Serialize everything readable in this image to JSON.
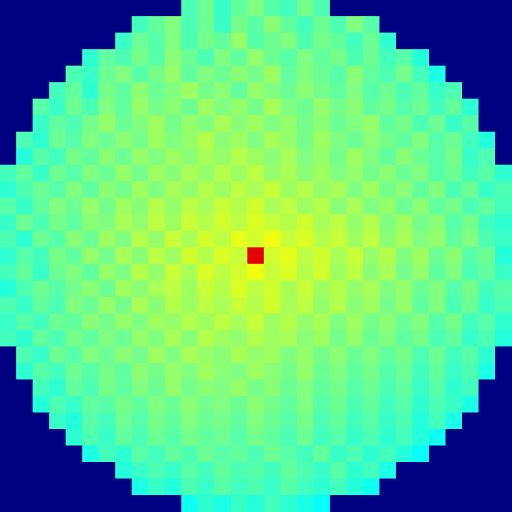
{
  "chart_data": {
    "type": "heatmap",
    "zlim": [
      0,
      1
    ],
    "tick_labels": false,
    "grid": false,
    "cells": [
      [
        0,
        0,
        0,
        0,
        0,
        0,
        0,
        0,
        0,
        0,
        0,
        0.45,
        0.48,
        0.43,
        0.47,
        0.5,
        0.46,
        0.44,
        0.49,
        0.45,
        0,
        0,
        0,
        0,
        0,
        0,
        0,
        0,
        0,
        0,
        0
      ],
      [
        0,
        0,
        0,
        0,
        0,
        0,
        0,
        0,
        0.44,
        0.47,
        0.5,
        0.45,
        0.48,
        0.43,
        0.49,
        0.46,
        0.51,
        0.47,
        0.44,
        0.48,
        0.45,
        0.5,
        0.46,
        0,
        0,
        0,
        0,
        0,
        0,
        0,
        0
      ],
      [
        0,
        0,
        0,
        0,
        0,
        0,
        0,
        0.43,
        0.48,
        0.46,
        0.5,
        0.45,
        0.49,
        0.47,
        0.52,
        0.46,
        0.48,
        0.5,
        0.45,
        0.49,
        0.47,
        0.44,
        0.48,
        0.42,
        0,
        0,
        0,
        0,
        0,
        0,
        0
      ],
      [
        0,
        0,
        0,
        0,
        0,
        0.42,
        0.47,
        0.45,
        0.49,
        0.46,
        0.51,
        0.48,
        0.45,
        0.5,
        0.47,
        0.52,
        0.48,
        0.46,
        0.5,
        0.47,
        0.49,
        0.45,
        0.48,
        0.44,
        0.46,
        0.41,
        0,
        0,
        0,
        0,
        0
      ],
      [
        0,
        0,
        0,
        0,
        0.45,
        0.43,
        0.48,
        0.5,
        0.46,
        0.49,
        0.52,
        0.47,
        0.5,
        0.48,
        0.51,
        0.49,
        0.53,
        0.47,
        0.5,
        0.48,
        0.46,
        0.51,
        0.47,
        0.45,
        0.49,
        0.44,
        0.4,
        0,
        0,
        0,
        0
      ],
      [
        0,
        0,
        0,
        0.44,
        0.47,
        0.42,
        0.49,
        0.47,
        0.51,
        0.48,
        0.5,
        0.53,
        0.49,
        0.51,
        0.47,
        0.52,
        0.5,
        0.48,
        0.51,
        0.49,
        0.47,
        0.5,
        0.46,
        0.48,
        0.45,
        0.47,
        0.43,
        0.45,
        0,
        0,
        0
      ],
      [
        0,
        0,
        0.46,
        0.43,
        0.48,
        0.45,
        0.5,
        0.47,
        0.52,
        0.49,
        0.51,
        0.48,
        0.53,
        0.5,
        0.52,
        0.49,
        0.54,
        0.5,
        0.48,
        0.52,
        0.49,
        0.51,
        0.47,
        0.49,
        0.46,
        0.48,
        0.44,
        0.47,
        0.42,
        0,
        0
      ],
      [
        0,
        0,
        0.43,
        0.47,
        0.45,
        0.49,
        0.52,
        0.48,
        0.5,
        0.53,
        0.49,
        0.52,
        0.5,
        0.54,
        0.51,
        0.53,
        0.5,
        0.52,
        0.49,
        0.51,
        0.48,
        0.5,
        0.52,
        0.47,
        0.49,
        0.45,
        0.48,
        0.43,
        0.46,
        0,
        0
      ],
      [
        0,
        0.45,
        0.42,
        0.48,
        0.46,
        0.5,
        0.48,
        0.51,
        0.49,
        0.53,
        0.5,
        0.52,
        0.55,
        0.51,
        0.53,
        0.5,
        0.54,
        0.52,
        0.49,
        0.53,
        0.5,
        0.48,
        0.51,
        0.49,
        0.47,
        0.5,
        0.46,
        0.48,
        0.44,
        0.41,
        0
      ],
      [
        0,
        0.41,
        0.46,
        0.44,
        0.49,
        0.47,
        0.51,
        0.48,
        0.52,
        0.5,
        0.53,
        0.51,
        0.54,
        0.52,
        0.55,
        0.53,
        0.51,
        0.54,
        0.5,
        0.52,
        0.49,
        0.53,
        0.5,
        0.47,
        0.51,
        0.48,
        0.46,
        0.49,
        0.43,
        0.45,
        0
      ],
      [
        0.44,
        0.47,
        0.43,
        0.48,
        0.46,
        0.5,
        0.48,
        0.52,
        0.49,
        0.53,
        0.51,
        0.54,
        0.52,
        0.55,
        0.53,
        0.56,
        0.52,
        0.54,
        0.51,
        0.53,
        0.5,
        0.52,
        0.49,
        0.51,
        0.48,
        0.5,
        0.46,
        0.48,
        0.44,
        0.46,
        0.42
      ],
      [
        0.42,
        0.45,
        0.48,
        0.46,
        0.5,
        0.47,
        0.51,
        0.49,
        0.53,
        0.5,
        0.54,
        0.52,
        0.55,
        0.53,
        0.56,
        0.54,
        0.57,
        0.53,
        0.55,
        0.52,
        0.54,
        0.5,
        0.53,
        0.49,
        0.51,
        0.47,
        0.5,
        0.45,
        0.48,
        0.43,
        0.45
      ],
      [
        0.46,
        0.43,
        0.47,
        0.5,
        0.48,
        0.52,
        0.49,
        0.53,
        0.51,
        0.55,
        0.52,
        0.56,
        0.54,
        0.57,
        0.55,
        0.58,
        0.54,
        0.56,
        0.53,
        0.55,
        0.51,
        0.54,
        0.5,
        0.52,
        0.48,
        0.51,
        0.47,
        0.49,
        0.45,
        0.47,
        0.44
      ],
      [
        0.43,
        0.48,
        0.45,
        0.49,
        0.47,
        0.51,
        0.5,
        0.54,
        0.52,
        0.56,
        0.53,
        0.57,
        0.55,
        0.58,
        0.56,
        0.59,
        0.57,
        0.55,
        0.58,
        0.54,
        0.56,
        0.52,
        0.55,
        0.5,
        0.53,
        0.49,
        0.51,
        0.46,
        0.49,
        0.44,
        0.42
      ],
      [
        0.45,
        0.42,
        0.48,
        0.46,
        0.51,
        0.48,
        0.53,
        0.5,
        0.55,
        0.52,
        0.57,
        0.54,
        0.58,
        0.56,
        0.6,
        0.58,
        0.61,
        0.57,
        0.59,
        0.55,
        0.57,
        0.53,
        0.56,
        0.51,
        0.54,
        0.5,
        0.52,
        0.47,
        0.5,
        0.45,
        0.43
      ],
      [
        0.42,
        0.46,
        0.44,
        0.49,
        0.47,
        0.52,
        0.49,
        0.54,
        0.51,
        0.56,
        0.53,
        0.58,
        0.55,
        0.59,
        0.57,
        0.9,
        0.58,
        0.6,
        0.56,
        0.58,
        0.54,
        0.57,
        0.52,
        0.55,
        0.5,
        0.53,
        0.48,
        0.51,
        0.46,
        0.48,
        0.41
      ],
      [
        0.44,
        0.47,
        0.43,
        0.48,
        0.5,
        0.47,
        0.52,
        0.5,
        0.55,
        0.52,
        0.57,
        0.54,
        0.59,
        0.56,
        0.58,
        0.61,
        0.57,
        0.59,
        0.55,
        0.58,
        0.53,
        0.56,
        0.51,
        0.54,
        0.49,
        0.52,
        0.47,
        0.5,
        0.45,
        0.47,
        0.43
      ],
      [
        0.41,
        0.45,
        0.48,
        0.46,
        0.49,
        0.51,
        0.48,
        0.53,
        0.51,
        0.54,
        0.56,
        0.53,
        0.57,
        0.55,
        0.59,
        0.56,
        0.58,
        0.54,
        0.57,
        0.53,
        0.55,
        0.52,
        0.54,
        0.5,
        0.52,
        0.48,
        0.5,
        0.46,
        0.49,
        0.44,
        0.46
      ],
      [
        0.45,
        0.43,
        0.47,
        0.45,
        0.5,
        0.48,
        0.52,
        0.49,
        0.54,
        0.51,
        0.55,
        0.53,
        0.56,
        0.54,
        0.57,
        0.55,
        0.58,
        0.54,
        0.56,
        0.52,
        0.55,
        0.51,
        0.53,
        0.49,
        0.52,
        0.47,
        0.5,
        0.45,
        0.48,
        0.43,
        0.45
      ],
      [
        0.43,
        0.46,
        0.44,
        0.48,
        0.47,
        0.51,
        0.49,
        0.52,
        0.5,
        0.53,
        0.52,
        0.55,
        0.53,
        0.56,
        0.54,
        0.57,
        0.53,
        0.55,
        0.52,
        0.54,
        0.5,
        0.53,
        0.49,
        0.51,
        0.48,
        0.5,
        0.46,
        0.49,
        0.44,
        0.46,
        0.42
      ],
      [
        0.44,
        0.42,
        0.47,
        0.45,
        0.49,
        0.47,
        0.5,
        0.48,
        0.52,
        0.5,
        0.54,
        0.51,
        0.55,
        0.53,
        0.52,
        0.55,
        0.53,
        0.54,
        0.51,
        0.53,
        0.49,
        0.52,
        0.48,
        0.5,
        0.47,
        0.49,
        0.45,
        0.47,
        0.43,
        0.45,
        0.41
      ],
      [
        0,
        0.45,
        0.43,
        0.48,
        0.46,
        0.5,
        0.48,
        0.51,
        0.49,
        0.53,
        0.5,
        0.54,
        0.52,
        0.51,
        0.54,
        0.52,
        0.53,
        0.5,
        0.52,
        0.49,
        0.51,
        0.48,
        0.5,
        0.47,
        0.49,
        0.45,
        0.48,
        0.44,
        0.46,
        0.42,
        0
      ],
      [
        0,
        0.42,
        0.46,
        0.44,
        0.48,
        0.46,
        0.49,
        0.47,
        0.51,
        0.49,
        0.52,
        0.5,
        0.53,
        0.51,
        0.5,
        0.53,
        0.51,
        0.49,
        0.52,
        0.48,
        0.5,
        0.47,
        0.49,
        0.46,
        0.48,
        0.44,
        0.47,
        0.43,
        0.45,
        0.4,
        0
      ],
      [
        0,
        0,
        0.44,
        0.42,
        0.47,
        0.45,
        0.49,
        0.47,
        0.5,
        0.48,
        0.52,
        0.49,
        0.51,
        0.5,
        0.52,
        0.49,
        0.51,
        0.48,
        0.5,
        0.47,
        0.49,
        0.46,
        0.48,
        0.45,
        0.47,
        0.43,
        0.46,
        0.42,
        0.44,
        0,
        0
      ],
      [
        0,
        0,
        0.41,
        0.45,
        0.43,
        0.47,
        0.46,
        0.49,
        0.47,
        0.5,
        0.48,
        0.51,
        0.49,
        0.5,
        0.48,
        0.51,
        0.49,
        0.47,
        0.5,
        0.46,
        0.48,
        0.45,
        0.47,
        0.44,
        0.46,
        0.42,
        0.45,
        0.43,
        0.4,
        0,
        0
      ],
      [
        0,
        0,
        0,
        0.43,
        0.41,
        0.46,
        0.44,
        0.48,
        0.46,
        0.49,
        0.47,
        0.5,
        0.48,
        0.49,
        0.47,
        0.5,
        0.48,
        0.46,
        0.49,
        0.45,
        0.47,
        0.44,
        0.46,
        0.43,
        0.45,
        0.41,
        0.44,
        0.4,
        0,
        0,
        0
      ],
      [
        0,
        0,
        0,
        0,
        0.42,
        0.45,
        0.43,
        0.47,
        0.45,
        0.48,
        0.46,
        0.49,
        0.47,
        0.48,
        0.46,
        0.49,
        0.47,
        0.45,
        0.48,
        0.44,
        0.46,
        0.43,
        0.45,
        0.42,
        0.44,
        0.41,
        0.39,
        0,
        0,
        0,
        0
      ],
      [
        0,
        0,
        0,
        0,
        0,
        0.4,
        0.44,
        0.42,
        0.46,
        0.44,
        0.47,
        0.45,
        0.48,
        0.46,
        0.47,
        0.45,
        0.48,
        0.46,
        0.44,
        0.47,
        0.43,
        0.45,
        0.42,
        0.44,
        0.41,
        0.38,
        0,
        0,
        0,
        0,
        0
      ],
      [
        0,
        0,
        0,
        0,
        0,
        0,
        0,
        0.41,
        0.43,
        0.45,
        0.43,
        0.46,
        0.44,
        0.47,
        0.45,
        0.46,
        0.44,
        0.47,
        0.45,
        0.43,
        0.46,
        0.42,
        0.44,
        0.4,
        0,
        0,
        0,
        0,
        0,
        0,
        0
      ],
      [
        0,
        0,
        0,
        0,
        0,
        0,
        0,
        0,
        0.4,
        0.43,
        0.41,
        0.45,
        0.43,
        0.46,
        0.44,
        0.45,
        0.43,
        0.46,
        0.44,
        0.42,
        0.44,
        0.41,
        0.39,
        0,
        0,
        0,
        0,
        0,
        0,
        0,
        0
      ],
      [
        0,
        0,
        0,
        0,
        0,
        0,
        0,
        0,
        0,
        0,
        0,
        0.39,
        0.42,
        0.4,
        0.43,
        0.41,
        0.44,
        0.42,
        0.4,
        0.38,
        0,
        0,
        0,
        0,
        0,
        0,
        0,
        0,
        0,
        0,
        0
      ]
    ]
  }
}
